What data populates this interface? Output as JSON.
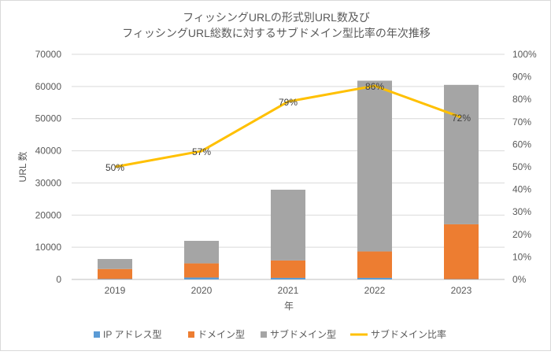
{
  "chart_data": {
    "type": "bar",
    "title": [
      "フィッシングURLの形式別URL数及び",
      "フィッシングURL総数に対するサブドメイン型比率の年次推移"
    ],
    "xlabel": "年",
    "ylabel": "URL 数",
    "categories": [
      "2019",
      "2020",
      "2021",
      "2022",
      "2023"
    ],
    "ylim": [
      0,
      70000
    ],
    "y2lim": [
      0,
      100
    ],
    "yticks": [
      "0",
      "10000",
      "20000",
      "30000",
      "40000",
      "50000",
      "60000",
      "70000"
    ],
    "y2ticks": [
      "0%",
      "10%",
      "20%",
      "30%",
      "40%",
      "50%",
      "60%",
      "70%",
      "80%",
      "90%",
      "100%"
    ],
    "series": [
      {
        "name": "IP アドレス型",
        "type": "bar",
        "color": "#5b9bd5",
        "values": [
          150,
          600,
          500,
          500,
          100
        ]
      },
      {
        "name": "ドメイン型",
        "type": "bar",
        "color": "#ed7d31",
        "values": [
          3100,
          4400,
          5400,
          8200,
          17050
        ]
      },
      {
        "name": "サブドメイン型",
        "type": "bar",
        "color": "#a5a5a5",
        "values": [
          3100,
          7000,
          22000,
          53100,
          43350
        ]
      },
      {
        "name": "サブドメイン比率",
        "type": "line",
        "axis": "right",
        "color": "#ffc000",
        "values": [
          50,
          57,
          79,
          86,
          72
        ],
        "labels": [
          "50%",
          "57%",
          "79%",
          "86%",
          "72%"
        ]
      }
    ],
    "grid": true,
    "legend": "bottom"
  }
}
